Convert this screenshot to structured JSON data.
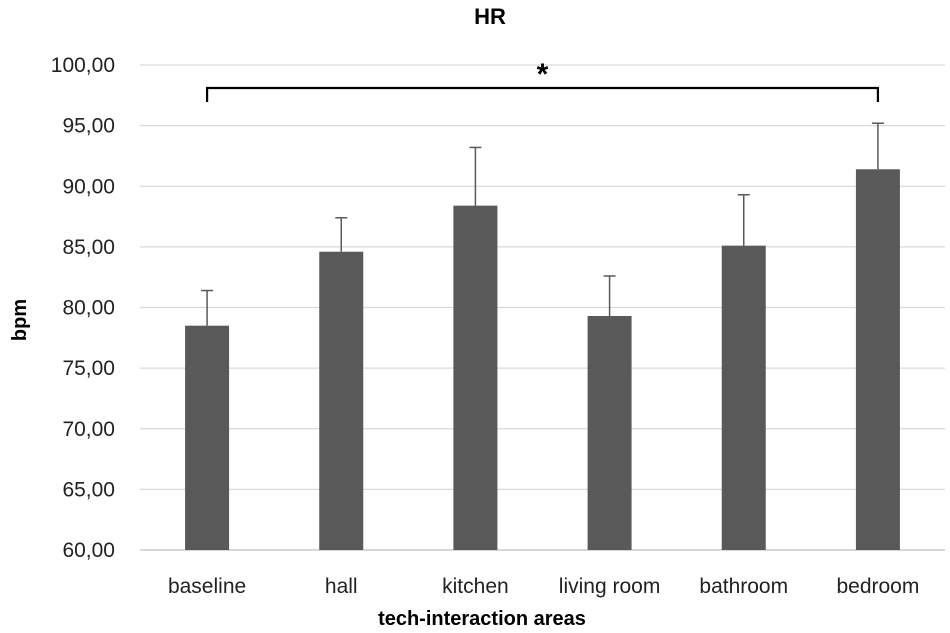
{
  "chart_data": {
    "type": "bar",
    "title": "HR",
    "xlabel": "tech-interaction areas",
    "ylabel": "bpm",
    "categories": [
      "baseline",
      "hall",
      "kitchen",
      "living room",
      "bathroom",
      "bedroom"
    ],
    "values": [
      78.5,
      84.6,
      88.4,
      79.3,
      85.1,
      91.4
    ],
    "error_plus": [
      2.9,
      2.8,
      4.8,
      3.3,
      4.2,
      3.8
    ],
    "ylim": [
      60,
      100
    ],
    "yticks": [
      60,
      65,
      70,
      75,
      80,
      85,
      90,
      95,
      100
    ],
    "ytick_labels": [
      "60,00",
      "65,00",
      "70,00",
      "75,00",
      "80,00",
      "85,00",
      "90,00",
      "95,00",
      "100,00"
    ],
    "grid": true,
    "bar_color": "#595959",
    "significance": {
      "from": "baseline",
      "to": "bedroom",
      "label": "*"
    }
  }
}
